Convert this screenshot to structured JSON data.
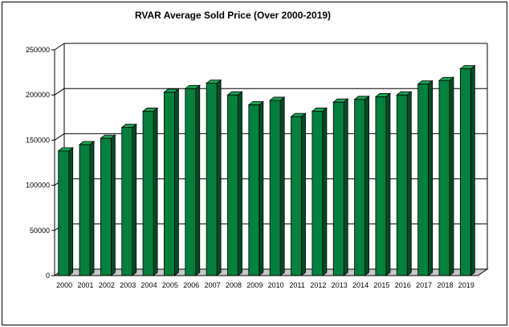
{
  "chart_data": {
    "type": "bar",
    "title": "RVAR Average Sold Price (Over 2000-2019)",
    "xlabel": "",
    "ylabel": "",
    "categories": [
      "2000",
      "2001",
      "2002",
      "2003",
      "2004",
      "2005",
      "2006",
      "2007",
      "2008",
      "2009",
      "2010",
      "2011",
      "2012",
      "2013",
      "2014",
      "2015",
      "2016",
      "2017",
      "2018",
      "2019"
    ],
    "values": [
      138000,
      145000,
      152000,
      164000,
      182000,
      203000,
      207000,
      213000,
      200000,
      189000,
      194000,
      176000,
      182000,
      192000,
      195000,
      198000,
      200000,
      212000,
      216000,
      229000
    ],
    "ylim": [
      0,
      250000
    ],
    "yticks": [
      0,
      50000,
      100000,
      150000,
      200000,
      250000
    ],
    "grid": true,
    "three_d": true,
    "legend": "none",
    "colors": {
      "bar_front": "#00813c",
      "bar_side": "#004d24",
      "bar_top": "#1aa552",
      "floor": "#c8c8c8",
      "grid": "#000000"
    }
  }
}
